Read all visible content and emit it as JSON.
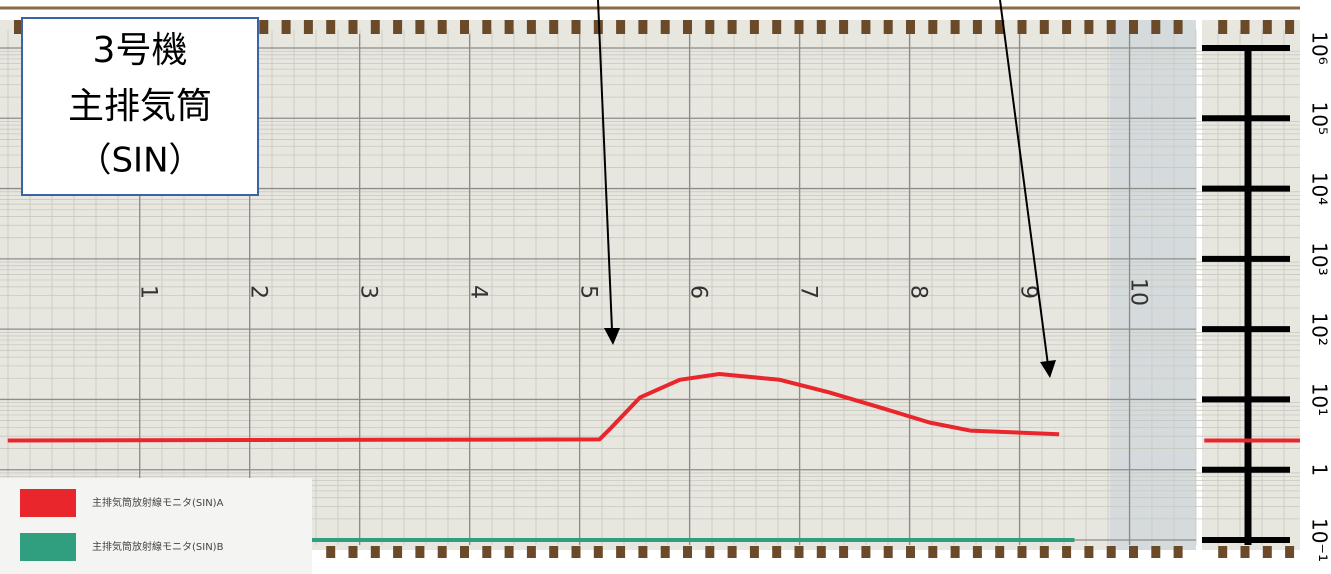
{
  "chart_data": {
    "type": "line",
    "box_title": [
      "3号機",
      "主排気筒",
      "（SIN）"
    ],
    "y_log": true,
    "xlim": [
      -0.27,
      11.55
    ],
    "xticks": [
      1,
      2,
      3,
      4,
      5,
      6,
      7,
      8,
      9,
      10
    ],
    "ylim": [
      0.1,
      1000000
    ],
    "yticks": [
      {
        "value": 0.1,
        "label": "10⁻¹"
      },
      1,
      {
        "value": 10,
        "label": "10¹"
      },
      {
        "value": 100,
        "label": "10²"
      },
      {
        "value": 1000,
        "label": "10³"
      },
      {
        "value": 10000,
        "label": "10⁴"
      },
      {
        "value": 100000,
        "label": "10⁵"
      },
      {
        "value": 1000000,
        "label": "10⁶"
      }
    ],
    "grid": true,
    "series": [
      {
        "name": "主排気筒放射線モニタ(SIN)A",
        "color": "#e8262c",
        "x": [
          -0.2,
          5.18,
          5.29,
          5.55,
          5.91,
          6.27,
          6.82,
          7.27,
          7.73,
          8.18,
          8.55,
          9.36,
          10,
          10.68,
          11.55
        ],
        "values": [
          2.6,
          2.7,
          4,
          10.7,
          19,
          23,
          19,
          12.6,
          7.7,
          4.7,
          3.6,
          3.2,
          null,
          2.6,
          2.6
        ]
      },
      {
        "name": "主排気筒放射線モニタ(SIN)B",
        "color": "#2f9f80",
        "x": [
          -0.2,
          9.5
        ],
        "values": [
          0.1,
          0.1
        ]
      }
    ]
  }
}
